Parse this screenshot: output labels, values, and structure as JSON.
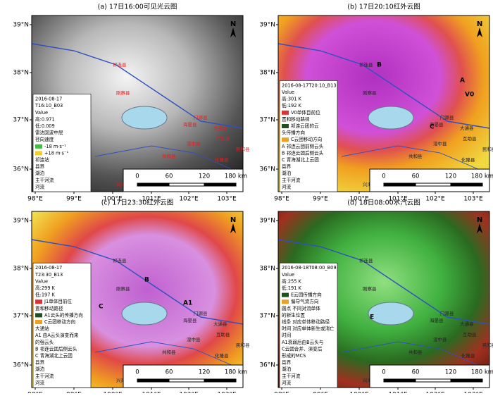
{
  "axes": {
    "lat": [
      "39°N",
      "38°N",
      "37°N",
      "36°N"
    ],
    "lon": [
      "98°E",
      "99°E",
      "100°E",
      "101°E",
      "102°E",
      "103°E"
    ]
  },
  "scale_bar": [
    "0",
    "60",
    "120",
    "180 km"
  ],
  "north": "N",
  "places": [
    "祁连县",
    "门源县",
    "海晏县",
    "刚察县",
    "大通县",
    "互助县",
    "湟中县",
    "共和县",
    "化隆县",
    "民和县",
    "兴海县"
  ],
  "panels": [
    {
      "title": "(a) 17日16:00可见光云图",
      "place_color": "#e02020",
      "letters": [],
      "legend": [
        "2016-08-17",
        "T16:10_B03",
        "Value",
        "高:0.971",
        "低:0.009",
        "雷达回波中层",
        "径向速度",
        "-18 m·s⁻¹",
        "+18 m·s⁻¹",
        "祁连站",
        "县界",
        "湖泊",
        "主干河流",
        "河流"
      ]
    },
    {
      "title": "(b) 17日20:10红外云图",
      "place_color": "#222222",
      "letters": [
        "A",
        "B",
        "C",
        "V0"
      ],
      "legend": [
        "2016-08-17T20:10_B13",
        "Value",
        "高:301 K",
        "低:192 K",
        "V0单体目前位",
        "置和移动路径",
        "祁连云团的云",
        "头传播方向",
        "C云团移动方向",
        "A 祁连云团前侧云头",
        "B 祁连云团后侧云头",
        "C 青海湖北上云团",
        "县界",
        "湖泊",
        "主干河流",
        "河流"
      ]
    },
    {
      "title": "(c) 17日23:30红外云图",
      "place_color": "#222222",
      "letters": [
        "A1",
        "B",
        "C"
      ],
      "legend": [
        "2016-08-17",
        "T23:30_B13",
        "Value",
        "高:299 K",
        "低:197 K",
        "J1单体目前位",
        "置和移动路径",
        "A1云头的传播方向",
        "C云团移动方向",
        "大通站",
        "A1 由A云头演变而来",
        "的强云头",
        "B 祁连云团后侧云头",
        "C 青海湖北上云团",
        "县界",
        "湖泊",
        "主干河流",
        "河流"
      ]
    },
    {
      "title": "(d) 18日08:00水汽云图",
      "place_color": "#222222",
      "letters": [
        "E"
      ],
      "legend": [
        "2016-08-18T08:00_B09",
        "Value",
        "高:255 K",
        "低:191 K",
        "E云团传播方向",
        "偏导气流方向",
        "圆点 不同对流单体",
        "的新生位置",
        "线条 对应单体移动路径",
        "时间 对应单体新生或消亡",
        "时间",
        "A1衰弱后由B云头与",
        "C云团合并、演变后",
        "形成的MCS",
        "县界",
        "湖泊",
        "主干河流",
        "河流"
      ]
    }
  ]
}
